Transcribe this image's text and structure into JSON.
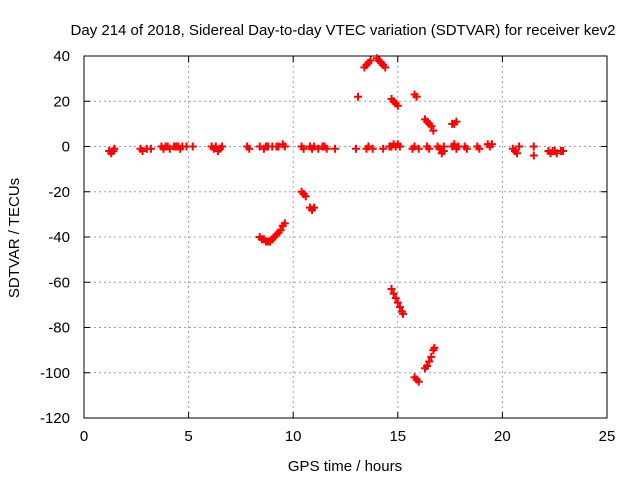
{
  "chart_data": {
    "type": "scatter",
    "title": "Day 214 of 2018, Sidereal Day-to-day VTEC variation (SDTVAR) for receiver kev2",
    "xlabel": "GPS time / hours",
    "ylabel": "SDTVAR / TECUs",
    "xlim": [
      0,
      25
    ],
    "ylim": [
      -120,
      40
    ],
    "xticks": [
      0,
      5,
      10,
      15,
      20,
      25
    ],
    "yticks": [
      -120,
      -100,
      -80,
      -60,
      -40,
      -20,
      0,
      20,
      40
    ],
    "xtick_labels": [
      "0",
      "5",
      "10",
      "15",
      "20",
      "25"
    ],
    "ytick_labels": [
      "-120",
      "-100",
      "-80",
      "-60",
      "-40",
      "-20",
      "0",
      "20",
      "40"
    ],
    "grid": true,
    "marker": "plus",
    "color": "#ff0000",
    "series": [
      {
        "name": "SDTVAR",
        "points": [
          [
            1.2,
            -2
          ],
          [
            1.3,
            -3
          ],
          [
            1.4,
            -2
          ],
          [
            1.45,
            -1
          ],
          [
            2.7,
            -1
          ],
          [
            2.8,
            -2
          ],
          [
            3.0,
            -1
          ],
          [
            3.2,
            -1
          ],
          [
            3.7,
            0
          ],
          [
            3.8,
            -1
          ],
          [
            3.9,
            0
          ],
          [
            4.0,
            0
          ],
          [
            4.1,
            -1
          ],
          [
            4.3,
            0
          ],
          [
            4.4,
            0
          ],
          [
            4.5,
            0
          ],
          [
            4.6,
            -1
          ],
          [
            4.7,
            0
          ],
          [
            4.9,
            0
          ],
          [
            5.2,
            0
          ],
          [
            6.1,
            0
          ],
          [
            6.2,
            -1
          ],
          [
            6.3,
            0
          ],
          [
            6.4,
            -2
          ],
          [
            6.5,
            -1
          ],
          [
            6.6,
            0
          ],
          [
            7.8,
            0
          ],
          [
            7.9,
            -1
          ],
          [
            8.4,
            0
          ],
          [
            8.6,
            -1
          ],
          [
            8.7,
            0
          ],
          [
            8.8,
            0
          ],
          [
            9.0,
            0
          ],
          [
            9.2,
            0
          ],
          [
            9.3,
            0
          ],
          [
            9.5,
            1
          ],
          [
            9.6,
            0
          ],
          [
            10.4,
            0
          ],
          [
            10.5,
            -1
          ],
          [
            10.8,
            0
          ],
          [
            10.9,
            -1
          ],
          [
            11.0,
            0
          ],
          [
            11.2,
            -1
          ],
          [
            11.4,
            0
          ],
          [
            11.5,
            0
          ],
          [
            11.6,
            -1
          ],
          [
            12.0,
            -1
          ],
          [
            13.0,
            -1
          ],
          [
            13.5,
            -1
          ],
          [
            13.6,
            0
          ],
          [
            13.8,
            -1
          ],
          [
            14.3,
            -1
          ],
          [
            14.6,
            0
          ],
          [
            14.7,
            0
          ],
          [
            14.8,
            1
          ],
          [
            14.9,
            0
          ],
          [
            15.0,
            1
          ],
          [
            15.1,
            0
          ],
          [
            15.7,
            -1
          ],
          [
            15.8,
            0
          ],
          [
            16.0,
            -1
          ],
          [
            16.4,
            0
          ],
          [
            16.5,
            -1
          ],
          [
            16.9,
            0
          ],
          [
            17.0,
            -1
          ],
          [
            17.2,
            0
          ],
          [
            17.6,
            0
          ],
          [
            17.7,
            1
          ],
          [
            17.8,
            -1
          ],
          [
            17.9,
            0
          ],
          [
            18.2,
            0
          ],
          [
            18.3,
            -1
          ],
          [
            18.8,
            0
          ],
          [
            18.9,
            -1
          ],
          [
            19.3,
            1
          ],
          [
            19.4,
            0
          ],
          [
            19.5,
            1
          ],
          [
            20.5,
            -1
          ],
          [
            20.6,
            -2
          ],
          [
            20.7,
            -3
          ],
          [
            20.8,
            0
          ],
          [
            21.5,
            0
          ],
          [
            21.5,
            -4
          ],
          [
            22.2,
            -2
          ],
          [
            22.3,
            -3
          ],
          [
            22.4,
            -2
          ],
          [
            22.5,
            -2
          ],
          [
            22.6,
            -3
          ],
          [
            22.8,
            -2
          ],
          [
            22.9,
            -2
          ],
          [
            8.4,
            -40
          ],
          [
            8.5,
            -41
          ],
          [
            8.6,
            -41
          ],
          [
            8.7,
            -42
          ],
          [
            8.8,
            -42
          ],
          [
            8.9,
            -42
          ],
          [
            9.0,
            -41
          ],
          [
            9.1,
            -40
          ],
          [
            9.2,
            -39
          ],
          [
            9.3,
            -38
          ],
          [
            9.4,
            -37
          ],
          [
            9.5,
            -35
          ],
          [
            9.6,
            -34
          ],
          [
            10.4,
            -20
          ],
          [
            10.5,
            -21
          ],
          [
            10.6,
            -22
          ],
          [
            10.8,
            -27
          ],
          [
            10.9,
            -28
          ],
          [
            11.0,
            -27
          ],
          [
            13.1,
            22
          ],
          [
            13.4,
            35
          ],
          [
            13.5,
            36
          ],
          [
            13.6,
            37
          ],
          [
            13.7,
            38
          ],
          [
            14.0,
            39
          ],
          [
            14.1,
            38
          ],
          [
            14.2,
            37
          ],
          [
            14.3,
            36
          ],
          [
            14.4,
            35
          ],
          [
            14.7,
            21
          ],
          [
            14.8,
            20
          ],
          [
            14.9,
            19
          ],
          [
            15.0,
            18
          ],
          [
            14.7,
            -63
          ],
          [
            14.8,
            -65
          ],
          [
            14.9,
            -67
          ],
          [
            15.0,
            -69
          ],
          [
            15.1,
            -71
          ],
          [
            15.2,
            -73
          ],
          [
            15.25,
            -74
          ],
          [
            15.8,
            23
          ],
          [
            15.9,
            22
          ],
          [
            15.8,
            -102
          ],
          [
            15.9,
            -103
          ],
          [
            16.0,
            -104
          ],
          [
            16.3,
            12
          ],
          [
            16.4,
            11
          ],
          [
            16.5,
            10
          ],
          [
            16.6,
            9
          ],
          [
            16.7,
            7
          ],
          [
            16.3,
            -98
          ],
          [
            16.4,
            -97
          ],
          [
            16.5,
            -95
          ],
          [
            16.6,
            -93
          ],
          [
            16.7,
            -90
          ],
          [
            16.75,
            -89
          ],
          [
            17.0,
            -1
          ],
          [
            17.1,
            -3
          ],
          [
            17.2,
            -2
          ],
          [
            17.6,
            10
          ],
          [
            17.7,
            10
          ],
          [
            17.8,
            11
          ]
        ]
      }
    ]
  }
}
